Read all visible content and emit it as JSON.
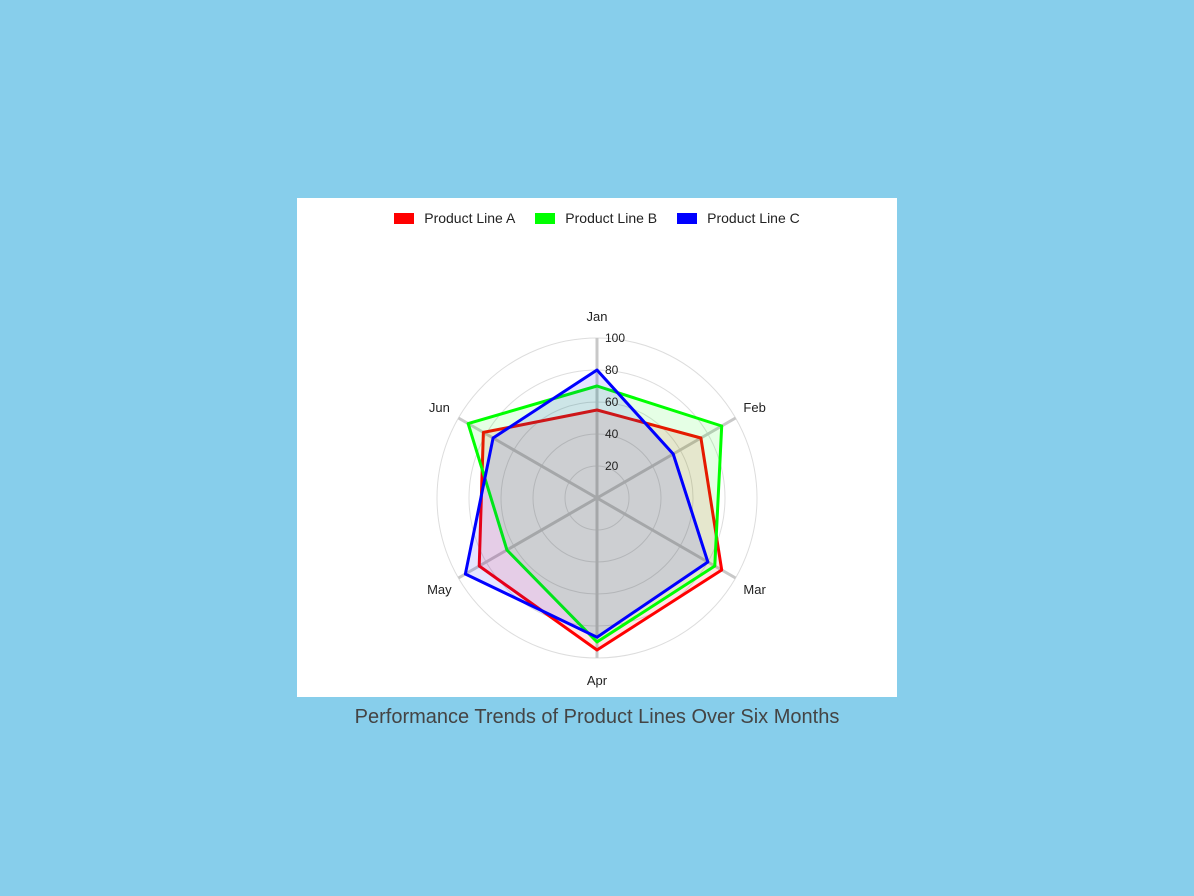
{
  "caption": "Performance Trends of Product Lines Over Six Months",
  "chart_data": {
    "type": "radar",
    "categories": [
      "Jan",
      "Feb",
      "Mar",
      "Apr",
      "May",
      "Jun"
    ],
    "rlim": [
      0,
      100
    ],
    "ticks": [
      20,
      40,
      60,
      80,
      100
    ],
    "legend_position": "top",
    "grid": true,
    "series": [
      {
        "name": "Product Line A",
        "values": [
          55,
          75,
          90,
          95,
          85,
          82
        ],
        "color": "#FF0000"
      },
      {
        "name": "Product Line B",
        "values": [
          70,
          90,
          85,
          90,
          65,
          93
        ],
        "color": "#00FF00"
      },
      {
        "name": "Product Line C",
        "values": [
          80,
          55,
          80,
          87,
          95,
          75
        ],
        "color": "#0000FF"
      }
    ]
  }
}
